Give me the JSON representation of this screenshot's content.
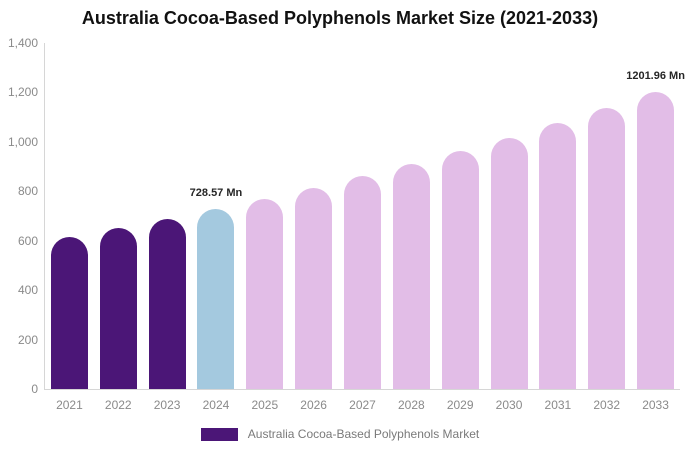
{
  "chart_data": {
    "type": "bar",
    "title": "Australia Cocoa-Based Polyphenols Market Size (2021-2033)",
    "unit": "Mn",
    "ylim": [
      0,
      1400
    ],
    "grid": false,
    "legend_position": "bottom",
    "yticks": [
      {
        "value": 0,
        "label": "0"
      },
      {
        "value": 200,
        "label": "200"
      },
      {
        "value": 400,
        "label": "400"
      },
      {
        "value": 600,
        "label": "600"
      },
      {
        "value": 800,
        "label": "800"
      },
      {
        "value": 1000,
        "label": "1,000"
      },
      {
        "value": 1200,
        "label": "1,200"
      },
      {
        "value": 1400,
        "label": "1,400"
      }
    ],
    "categories": [
      "2021",
      "2022",
      "2023",
      "2024",
      "2025",
      "2026",
      "2027",
      "2028",
      "2029",
      "2030",
      "2031",
      "2032",
      "2033"
    ],
    "points": [
      {
        "year": "2021",
        "value": 616,
        "type": "historical"
      },
      {
        "year": "2022",
        "value": 652,
        "type": "historical"
      },
      {
        "year": "2023",
        "value": 689,
        "type": "historical"
      },
      {
        "year": "2024",
        "value": 728.57,
        "type": "current",
        "label": "728.57 Mn"
      },
      {
        "year": "2025",
        "value": 770,
        "type": "forecast"
      },
      {
        "year": "2026",
        "value": 814,
        "type": "forecast"
      },
      {
        "year": "2027",
        "value": 861,
        "type": "forecast"
      },
      {
        "year": "2028",
        "value": 910,
        "type": "forecast"
      },
      {
        "year": "2029",
        "value": 962,
        "type": "forecast"
      },
      {
        "year": "2030",
        "value": 1017,
        "type": "forecast"
      },
      {
        "year": "2031",
        "value": 1075,
        "type": "forecast"
      },
      {
        "year": "2032",
        "value": 1137,
        "type": "forecast"
      },
      {
        "year": "2033",
        "value": 1201.96,
        "type": "forecast",
        "label": "1201.96 Mn"
      }
    ],
    "colors": {
      "historical": "#4B1677",
      "current": "#A4C9DF",
      "forecast": "#E2BDE7"
    },
    "legend": {
      "label": "Australia Cocoa-Based Polyphenols Market"
    }
  }
}
